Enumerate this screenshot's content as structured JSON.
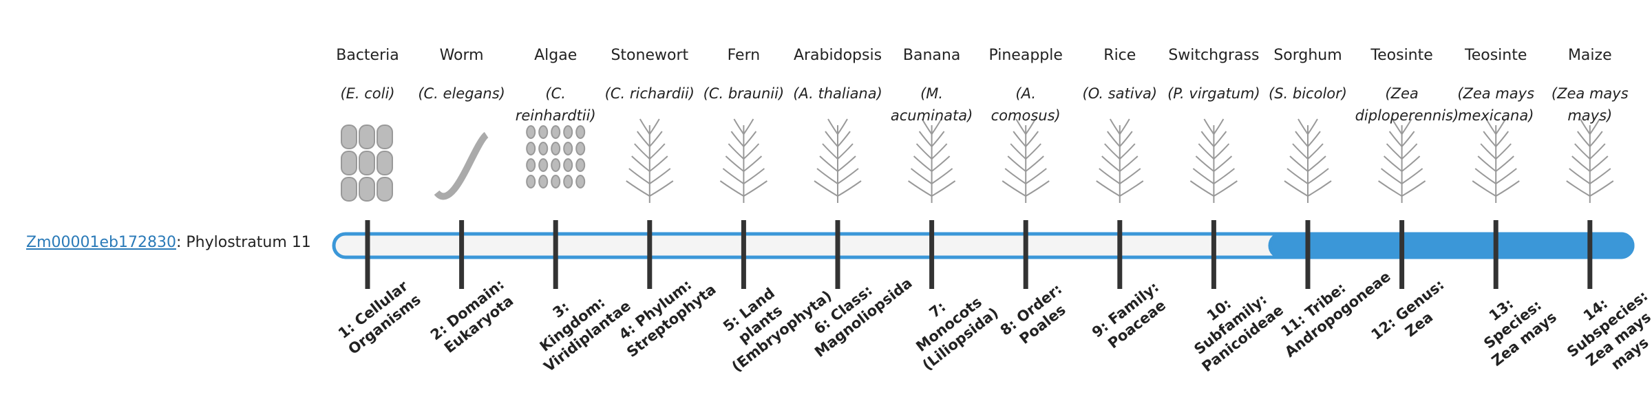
{
  "gene": {
    "id": "Zm00001eb172830",
    "label": ": Phylostratum",
    "stratum": 11
  },
  "strata": [
    {
      "name": "Bacteria",
      "species": "(E. coli)",
      "label": "1: Cellular Organisms"
    },
    {
      "name": "Worm",
      "species": "(C. elegans)",
      "label": "2: Domain: Eukaryota"
    },
    {
      "name": "Algae",
      "species": "(C. reinhardtii)",
      "label": "3: Kingdom: Viridiplantae"
    },
    {
      "name": "Stonewort",
      "species": "(C. richardii)",
      "label": "4: Phylum: Streptophyta"
    },
    {
      "name": "Fern",
      "species": "(C. braunii)",
      "label": "5: Land plants (Embryophyta)"
    },
    {
      "name": "Arabidopsis",
      "species": "(A. thaliana)",
      "label": "6: Class: Magnoliopsida"
    },
    {
      "name": "Banana",
      "species": "(M. acuminata)",
      "label": "7: Monocots (Liliopsida)"
    },
    {
      "name": "Pineapple",
      "species": "(A. comosus)",
      "label": "8: Order: Poales"
    },
    {
      "name": "Rice",
      "species": "(O. sativa)",
      "label": "9: Family: Poaceae"
    },
    {
      "name": "Switchgrass",
      "species": "(P. virgatum)",
      "label": "10: Subfamily: Panicoideae"
    },
    {
      "name": "Sorghum",
      "species": "(S. bicolor)",
      "label": "11: Tribe: Andropogoneae"
    },
    {
      "name": "Teosinte",
      "species": "(Zea diploperennis)",
      "label": "12: Genus: Zea"
    },
    {
      "name": "Teosinte",
      "species": "(Zea mays mexicana)",
      "label": "13: Species: Zea mays"
    },
    {
      "name": "Maize",
      "species": "(Zea mays mays)",
      "label": "14: Subspecies: Zea mays mays"
    }
  ]
}
